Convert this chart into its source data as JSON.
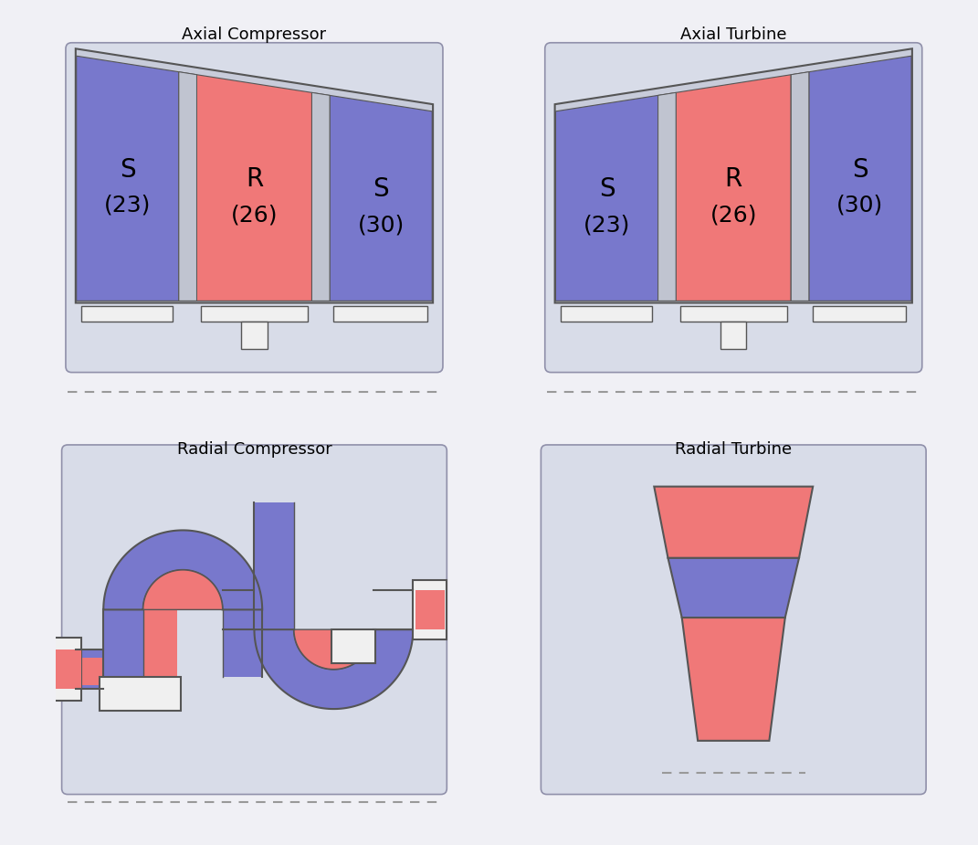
{
  "fig_bg": "#f0f0f5",
  "panel_bg": "#d8dce8",
  "inner_bg": "#cdd3e0",
  "blue": "#7878cc",
  "red": "#f07878",
  "white": "#f5f5f5",
  "gray_sep": "#c0c4d0",
  "outline": "#555555",
  "ped_fill": "#f0f0f0",
  "title_fs": 13,
  "label_fs": 20,
  "sub_fs": 18,
  "titles": [
    "Axial Compressor",
    "Axial Turbine",
    "Radial Compressor",
    "Radial Turbine"
  ],
  "s1": "S",
  "r1": "R",
  "s1n": "(23)",
  "rn": "(26)",
  "s2n": "(30)"
}
